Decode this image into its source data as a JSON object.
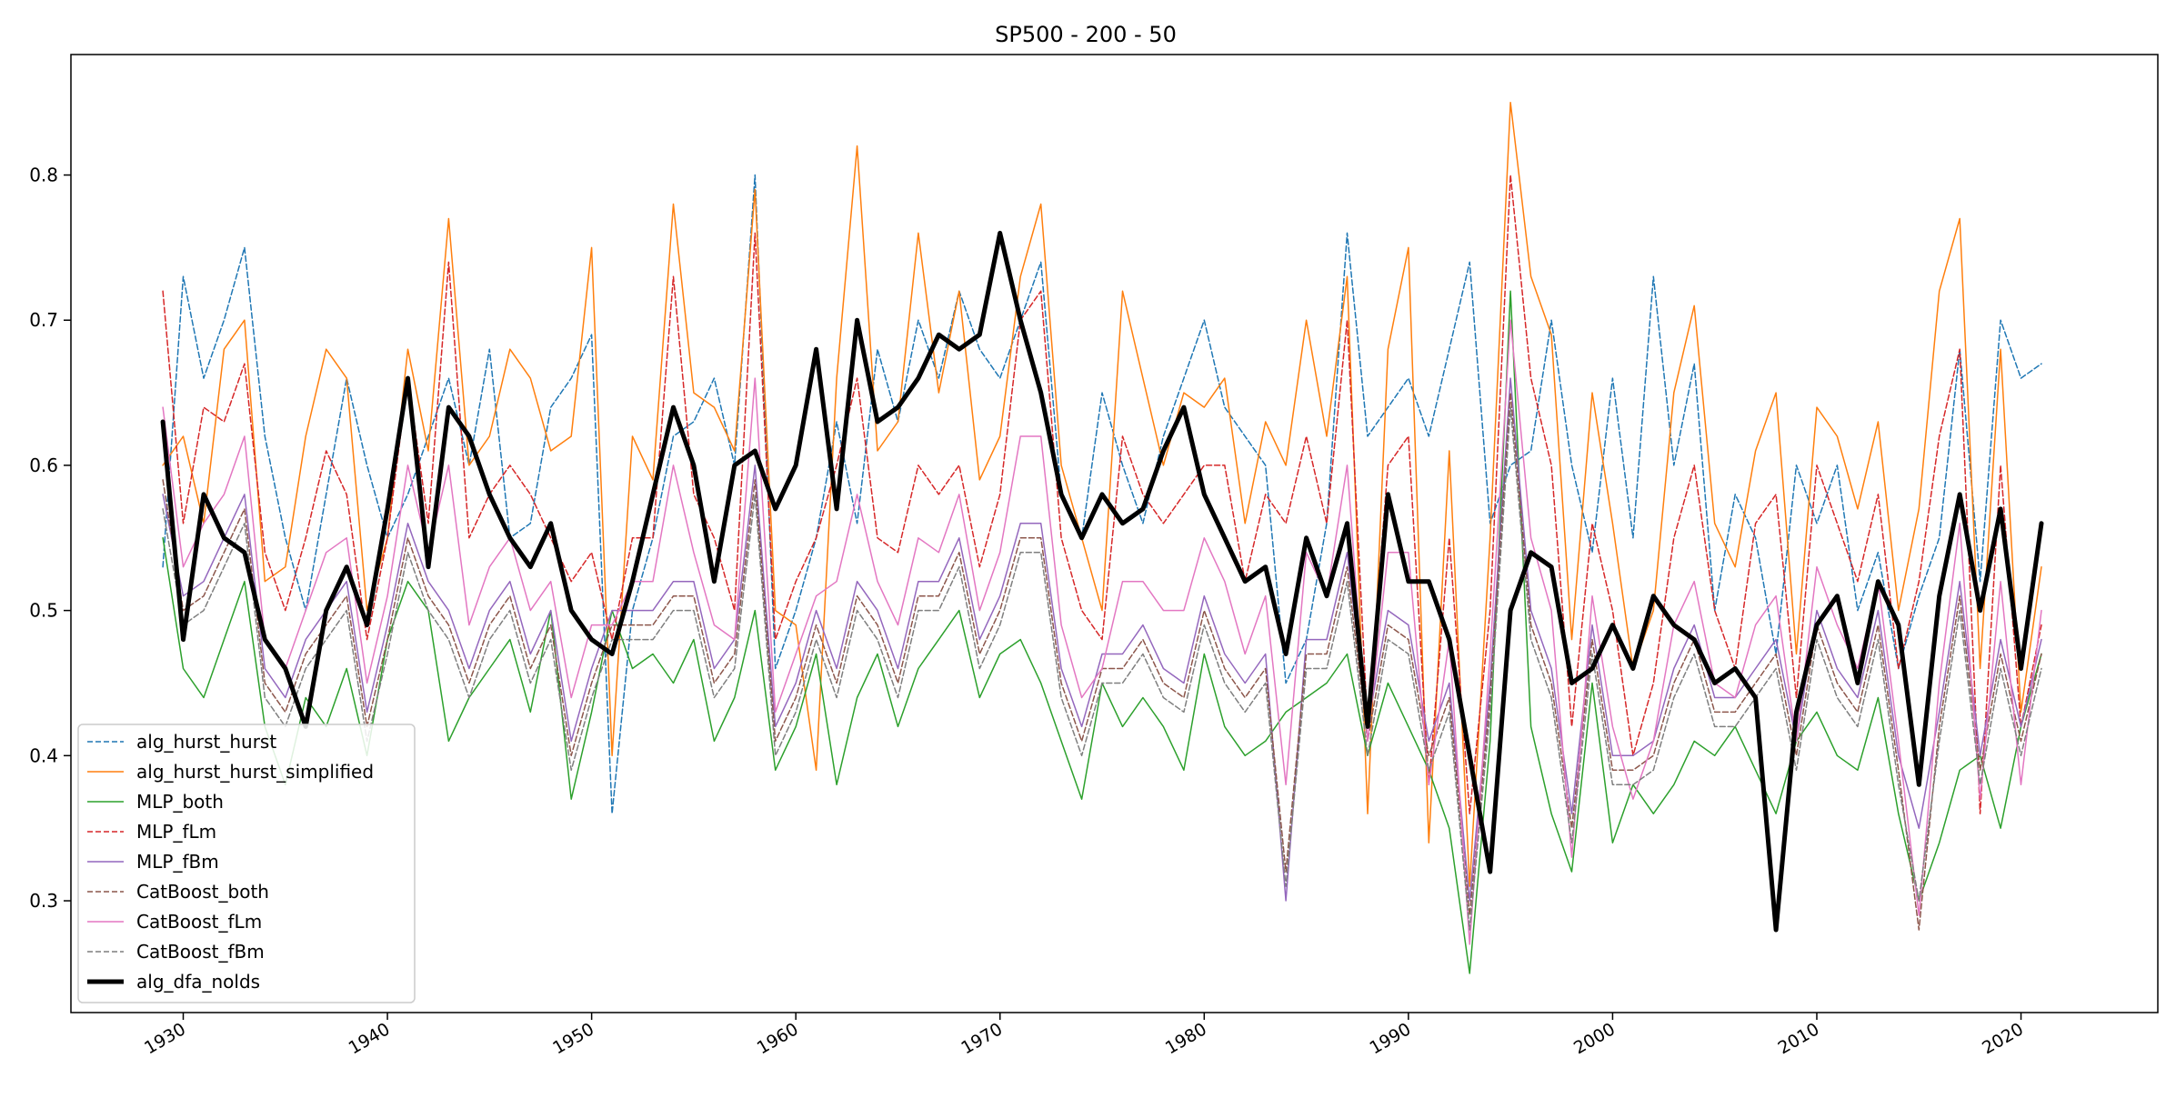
{
  "chart_data": {
    "type": "line",
    "title": "SP500 - 200 - 50",
    "xlabel": "",
    "ylabel": "",
    "xlim": [
      1924.5,
      2026.7
    ],
    "ylim": [
      0.223,
      0.883
    ],
    "x_ticks": [
      "1930",
      "1940",
      "1950",
      "1960",
      "1970",
      "1980",
      "1990",
      "2000",
      "2010",
      "2020"
    ],
    "y_ticks": [
      "0.3",
      "0.4",
      "0.5",
      "0.6",
      "0.7",
      "0.8"
    ],
    "grid": false,
    "legend_position": "lower left",
    "x": [
      1929,
      1930,
      1931,
      1932,
      1933,
      1934,
      1935,
      1936,
      1937,
      1938,
      1939,
      1940,
      1941,
      1942,
      1943,
      1944,
      1945,
      1946,
      1947,
      1948,
      1949,
      1950,
      1951,
      1952,
      1953,
      1954,
      1955,
      1956,
      1957,
      1958,
      1959,
      1960,
      1961,
      1962,
      1963,
      1964,
      1965,
      1966,
      1967,
      1968,
      1969,
      1970,
      1971,
      1972,
      1973,
      1974,
      1975,
      1976,
      1977,
      1978,
      1979,
      1980,
      1981,
      1982,
      1983,
      1984,
      1985,
      1986,
      1987,
      1988,
      1989,
      1990,
      1991,
      1992,
      1993,
      1994,
      1995,
      1996,
      1997,
      1998,
      1999,
      2000,
      2001,
      2002,
      2003,
      2004,
      2005,
      2006,
      2007,
      2008,
      2009,
      2010,
      2011,
      2012,
      2013,
      2014,
      2015,
      2016,
      2017,
      2018,
      2019,
      2020,
      2021
    ],
    "series": [
      {
        "name": "alg_hurst_hurst",
        "color": "#1f77b4",
        "dash": "dashed",
        "width": 1.5,
        "values": [
          0.53,
          0.73,
          0.66,
          0.7,
          0.75,
          0.62,
          0.55,
          0.5,
          0.58,
          0.66,
          0.6,
          0.55,
          0.58,
          0.62,
          0.66,
          0.6,
          0.68,
          0.55,
          0.56,
          0.64,
          0.66,
          0.69,
          0.36,
          0.5,
          0.55,
          0.62,
          0.63,
          0.66,
          0.6,
          0.8,
          0.46,
          0.5,
          0.55,
          0.63,
          0.56,
          0.68,
          0.63,
          0.7,
          0.66,
          0.72,
          0.68,
          0.66,
          0.7,
          0.74,
          0.58,
          0.55,
          0.65,
          0.6,
          0.56,
          0.62,
          0.66,
          0.7,
          0.64,
          0.62,
          0.6,
          0.45,
          0.48,
          0.56,
          0.76,
          0.62,
          0.64,
          0.66,
          0.62,
          0.68,
          0.74,
          0.56,
          0.6,
          0.61,
          0.7,
          0.6,
          0.54,
          0.66,
          0.55,
          0.73,
          0.6,
          0.67,
          0.5,
          0.58,
          0.55,
          0.47,
          0.6,
          0.56,
          0.6,
          0.5,
          0.54,
          0.46,
          0.51,
          0.55,
          0.68,
          0.52,
          0.7,
          0.66,
          0.67
        ]
      },
      {
        "name": "alg_hurst_hurst_simplified",
        "color": "#ff7f0e",
        "dash": "solid",
        "width": 1.5,
        "values": [
          0.6,
          0.62,
          0.56,
          0.68,
          0.7,
          0.52,
          0.53,
          0.62,
          0.68,
          0.66,
          0.5,
          0.55,
          0.68,
          0.61,
          0.77,
          0.6,
          0.62,
          0.68,
          0.66,
          0.61,
          0.62,
          0.75,
          0.4,
          0.62,
          0.59,
          0.78,
          0.65,
          0.64,
          0.61,
          0.79,
          0.5,
          0.49,
          0.39,
          0.66,
          0.82,
          0.61,
          0.63,
          0.76,
          0.65,
          0.72,
          0.59,
          0.62,
          0.73,
          0.78,
          0.6,
          0.55,
          0.5,
          0.72,
          0.66,
          0.6,
          0.65,
          0.64,
          0.66,
          0.56,
          0.63,
          0.6,
          0.7,
          0.62,
          0.73,
          0.36,
          0.68,
          0.75,
          0.34,
          0.61,
          0.31,
          0.55,
          0.85,
          0.73,
          0.69,
          0.48,
          0.65,
          0.56,
          0.46,
          0.5,
          0.65,
          0.71,
          0.56,
          0.53,
          0.61,
          0.65,
          0.47,
          0.64,
          0.62,
          0.57,
          0.63,
          0.5,
          0.57,
          0.72,
          0.77,
          0.46,
          0.68,
          0.43,
          0.53
        ]
      },
      {
        "name": "MLP_both",
        "color": "#2ca02c",
        "dash": "solid",
        "width": 1.5,
        "values": [
          0.55,
          0.46,
          0.44,
          0.48,
          0.52,
          0.42,
          0.38,
          0.44,
          0.42,
          0.46,
          0.4,
          0.48,
          0.52,
          0.5,
          0.41,
          0.44,
          0.46,
          0.48,
          0.43,
          0.5,
          0.37,
          0.43,
          0.5,
          0.46,
          0.47,
          0.45,
          0.48,
          0.41,
          0.44,
          0.5,
          0.39,
          0.42,
          0.47,
          0.38,
          0.44,
          0.47,
          0.42,
          0.46,
          0.48,
          0.5,
          0.44,
          0.47,
          0.48,
          0.45,
          0.41,
          0.37,
          0.45,
          0.42,
          0.44,
          0.42,
          0.39,
          0.47,
          0.42,
          0.4,
          0.41,
          0.43,
          0.44,
          0.45,
          0.47,
          0.4,
          0.45,
          0.42,
          0.39,
          0.35,
          0.25,
          0.41,
          0.72,
          0.42,
          0.36,
          0.32,
          0.45,
          0.34,
          0.38,
          0.36,
          0.38,
          0.41,
          0.4,
          0.42,
          0.39,
          0.36,
          0.41,
          0.43,
          0.4,
          0.39,
          0.44,
          0.36,
          0.3,
          0.34,
          0.39,
          0.4,
          0.35,
          0.42,
          0.47
        ]
      },
      {
        "name": "MLP_fLm",
        "color": "#d62728",
        "dash": "dashed",
        "width": 1.5,
        "values": [
          0.72,
          0.56,
          0.64,
          0.63,
          0.67,
          0.54,
          0.5,
          0.55,
          0.61,
          0.58,
          0.48,
          0.55,
          0.66,
          0.56,
          0.74,
          0.55,
          0.58,
          0.6,
          0.58,
          0.55,
          0.52,
          0.54,
          0.48,
          0.55,
          0.55,
          0.73,
          0.58,
          0.55,
          0.5,
          0.76,
          0.48,
          0.52,
          0.55,
          0.6,
          0.66,
          0.55,
          0.54,
          0.6,
          0.58,
          0.6,
          0.53,
          0.58,
          0.7,
          0.72,
          0.55,
          0.5,
          0.48,
          0.62,
          0.58,
          0.56,
          0.58,
          0.6,
          0.6,
          0.52,
          0.58,
          0.56,
          0.62,
          0.56,
          0.7,
          0.42,
          0.6,
          0.62,
          0.38,
          0.55,
          0.36,
          0.5,
          0.8,
          0.66,
          0.6,
          0.42,
          0.56,
          0.5,
          0.4,
          0.45,
          0.55,
          0.6,
          0.5,
          0.46,
          0.56,
          0.58,
          0.44,
          0.6,
          0.56,
          0.52,
          0.58,
          0.46,
          0.52,
          0.62,
          0.68,
          0.36,
          0.6,
          0.42,
          0.49
        ]
      },
      {
        "name": "MLP_fBm",
        "color": "#9467bd",
        "dash": "solid",
        "width": 1.5,
        "values": [
          0.58,
          0.51,
          0.52,
          0.55,
          0.58,
          0.46,
          0.44,
          0.48,
          0.5,
          0.52,
          0.43,
          0.49,
          0.56,
          0.52,
          0.5,
          0.46,
          0.5,
          0.52,
          0.47,
          0.5,
          0.41,
          0.46,
          0.5,
          0.5,
          0.5,
          0.52,
          0.52,
          0.46,
          0.48,
          0.6,
          0.42,
          0.45,
          0.5,
          0.46,
          0.52,
          0.5,
          0.46,
          0.52,
          0.52,
          0.55,
          0.48,
          0.51,
          0.56,
          0.56,
          0.46,
          0.42,
          0.47,
          0.47,
          0.49,
          0.46,
          0.45,
          0.51,
          0.47,
          0.45,
          0.47,
          0.3,
          0.48,
          0.48,
          0.54,
          0.42,
          0.5,
          0.49,
          0.41,
          0.45,
          0.3,
          0.45,
          0.66,
          0.5,
          0.46,
          0.36,
          0.49,
          0.4,
          0.4,
          0.41,
          0.46,
          0.49,
          0.44,
          0.44,
          0.46,
          0.48,
          0.41,
          0.5,
          0.46,
          0.44,
          0.5,
          0.4,
          0.35,
          0.43,
          0.52,
          0.4,
          0.48,
          0.42,
          0.48
        ]
      },
      {
        "name": "CatBoost_both",
        "color": "#8c564b",
        "dash": "dashed",
        "width": 1.5,
        "values": [
          0.59,
          0.5,
          0.51,
          0.54,
          0.57,
          0.45,
          0.43,
          0.47,
          0.49,
          0.51,
          0.42,
          0.48,
          0.55,
          0.51,
          0.49,
          0.45,
          0.49,
          0.51,
          0.46,
          0.49,
          0.4,
          0.45,
          0.49,
          0.49,
          0.49,
          0.51,
          0.51,
          0.45,
          0.47,
          0.59,
          0.41,
          0.44,
          0.49,
          0.45,
          0.51,
          0.49,
          0.45,
          0.51,
          0.51,
          0.54,
          0.47,
          0.5,
          0.55,
          0.55,
          0.45,
          0.41,
          0.46,
          0.46,
          0.48,
          0.45,
          0.44,
          0.5,
          0.46,
          0.44,
          0.46,
          0.32,
          0.47,
          0.47,
          0.53,
          0.41,
          0.49,
          0.48,
          0.4,
          0.44,
          0.29,
          0.44,
          0.65,
          0.49,
          0.45,
          0.35,
          0.48,
          0.39,
          0.39,
          0.4,
          0.45,
          0.48,
          0.43,
          0.43,
          0.45,
          0.47,
          0.4,
          0.49,
          0.45,
          0.43,
          0.49,
          0.39,
          0.28,
          0.42,
          0.51,
          0.39,
          0.47,
          0.41,
          0.47
        ]
      },
      {
        "name": "CatBoost_fLm",
        "color": "#e377c2",
        "dash": "solid",
        "width": 1.5,
        "values": [
          0.64,
          0.53,
          0.56,
          0.58,
          0.62,
          0.48,
          0.46,
          0.5,
          0.54,
          0.55,
          0.45,
          0.51,
          0.6,
          0.54,
          0.6,
          0.49,
          0.53,
          0.55,
          0.5,
          0.52,
          0.44,
          0.49,
          0.49,
          0.52,
          0.52,
          0.6,
          0.54,
          0.49,
          0.48,
          0.66,
          0.43,
          0.47,
          0.51,
          0.52,
          0.58,
          0.52,
          0.49,
          0.55,
          0.54,
          0.58,
          0.5,
          0.54,
          0.62,
          0.62,
          0.49,
          0.44,
          0.46,
          0.52,
          0.52,
          0.5,
          0.5,
          0.55,
          0.52,
          0.47,
          0.51,
          0.38,
          0.54,
          0.51,
          0.6,
          0.41,
          0.54,
          0.54,
          0.38,
          0.48,
          0.27,
          0.47,
          0.7,
          0.55,
          0.5,
          0.33,
          0.51,
          0.42,
          0.37,
          0.41,
          0.49,
          0.52,
          0.45,
          0.44,
          0.49,
          0.51,
          0.41,
          0.53,
          0.49,
          0.46,
          0.52,
          0.41,
          0.29,
          0.45,
          0.56,
          0.37,
          0.52,
          0.38,
          0.5
        ]
      },
      {
        "name": "CatBoost_fBm",
        "color": "#7f7f7f",
        "dash": "dashed",
        "width": 1.5,
        "values": [
          0.57,
          0.49,
          0.5,
          0.53,
          0.56,
          0.44,
          0.42,
          0.46,
          0.48,
          0.5,
          0.41,
          0.47,
          0.54,
          0.5,
          0.48,
          0.44,
          0.48,
          0.5,
          0.45,
          0.48,
          0.39,
          0.44,
          0.48,
          0.48,
          0.48,
          0.5,
          0.5,
          0.44,
          0.46,
          0.58,
          0.4,
          0.43,
          0.48,
          0.44,
          0.5,
          0.48,
          0.44,
          0.5,
          0.5,
          0.53,
          0.46,
          0.49,
          0.54,
          0.54,
          0.44,
          0.4,
          0.45,
          0.45,
          0.47,
          0.44,
          0.43,
          0.49,
          0.45,
          0.43,
          0.45,
          0.31,
          0.46,
          0.46,
          0.52,
          0.4,
          0.48,
          0.47,
          0.39,
          0.43,
          0.28,
          0.43,
          0.64,
          0.48,
          0.44,
          0.34,
          0.47,
          0.38,
          0.38,
          0.39,
          0.44,
          0.47,
          0.42,
          0.42,
          0.44,
          0.46,
          0.39,
          0.48,
          0.44,
          0.42,
          0.48,
          0.38,
          0.3,
          0.41,
          0.5,
          0.38,
          0.46,
          0.4,
          0.46
        ]
      },
      {
        "name": "alg_dfa_nolds",
        "color": "#000000",
        "dash": "solid",
        "width": 5,
        "values": [
          0.63,
          0.48,
          0.58,
          0.55,
          0.54,
          0.48,
          0.46,
          0.42,
          0.5,
          0.53,
          0.49,
          0.57,
          0.66,
          0.53,
          0.64,
          0.62,
          0.58,
          0.55,
          0.53,
          0.56,
          0.5,
          0.48,
          0.47,
          0.52,
          0.58,
          0.64,
          0.6,
          0.52,
          0.6,
          0.61,
          0.57,
          0.6,
          0.68,
          0.57,
          0.7,
          0.63,
          0.64,
          0.66,
          0.69,
          0.68,
          0.69,
          0.76,
          0.7,
          0.65,
          0.58,
          0.55,
          0.58,
          0.56,
          0.57,
          0.61,
          0.64,
          0.58,
          0.55,
          0.52,
          0.53,
          0.47,
          0.55,
          0.51,
          0.56,
          0.42,
          0.58,
          0.52,
          0.52,
          0.48,
          0.4,
          0.32,
          0.5,
          0.54,
          0.53,
          0.45,
          0.46,
          0.49,
          0.46,
          0.51,
          0.49,
          0.48,
          0.45,
          0.46,
          0.44,
          0.28,
          0.43,
          0.49,
          0.51,
          0.45,
          0.52,
          0.49,
          0.38,
          0.51,
          0.58,
          0.5,
          0.57,
          0.46,
          0.56
        ]
      }
    ]
  }
}
